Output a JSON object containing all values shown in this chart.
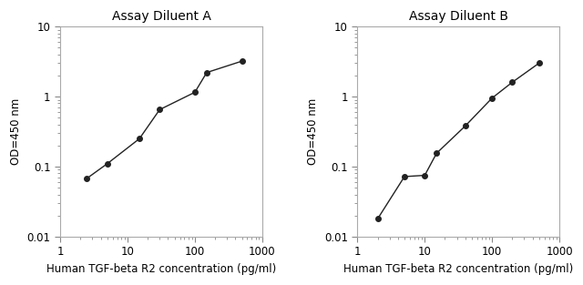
{
  "title_A": "Assay Diluent A",
  "title_B": "Assay Diluent B",
  "xlabel": "Human TGF-beta R2 concentration (pg/ml)",
  "ylabel": "OD=450 nm",
  "x_A": [
    2.5,
    5,
    15,
    30,
    100,
    150,
    500
  ],
  "y_A": [
    0.068,
    0.11,
    0.25,
    0.65,
    1.15,
    2.2,
    3.2
  ],
  "x_B": [
    2,
    5,
    10,
    15,
    40,
    100,
    200,
    500
  ],
  "y_B": [
    0.018,
    0.072,
    0.075,
    0.155,
    0.38,
    0.95,
    1.6,
    3.0
  ],
  "xlim": [
    1,
    1000
  ],
  "ylim": [
    0.01,
    10
  ],
  "line_color": "#222222",
  "marker": "o",
  "markersize": 4,
  "linewidth": 1.0,
  "bg_color": "#ffffff",
  "plot_bg": "#ffffff",
  "title_fontsize": 10,
  "label_fontsize": 8.5,
  "tick_fontsize": 8.5,
  "yticks": [
    0.01,
    0.1,
    1,
    10
  ],
  "ytick_labels": [
    "0.01",
    "0.1",
    "1",
    "10"
  ],
  "xticks": [
    1,
    10,
    100,
    1000
  ],
  "xtick_labels": [
    "1",
    "10",
    "100",
    "1000"
  ]
}
